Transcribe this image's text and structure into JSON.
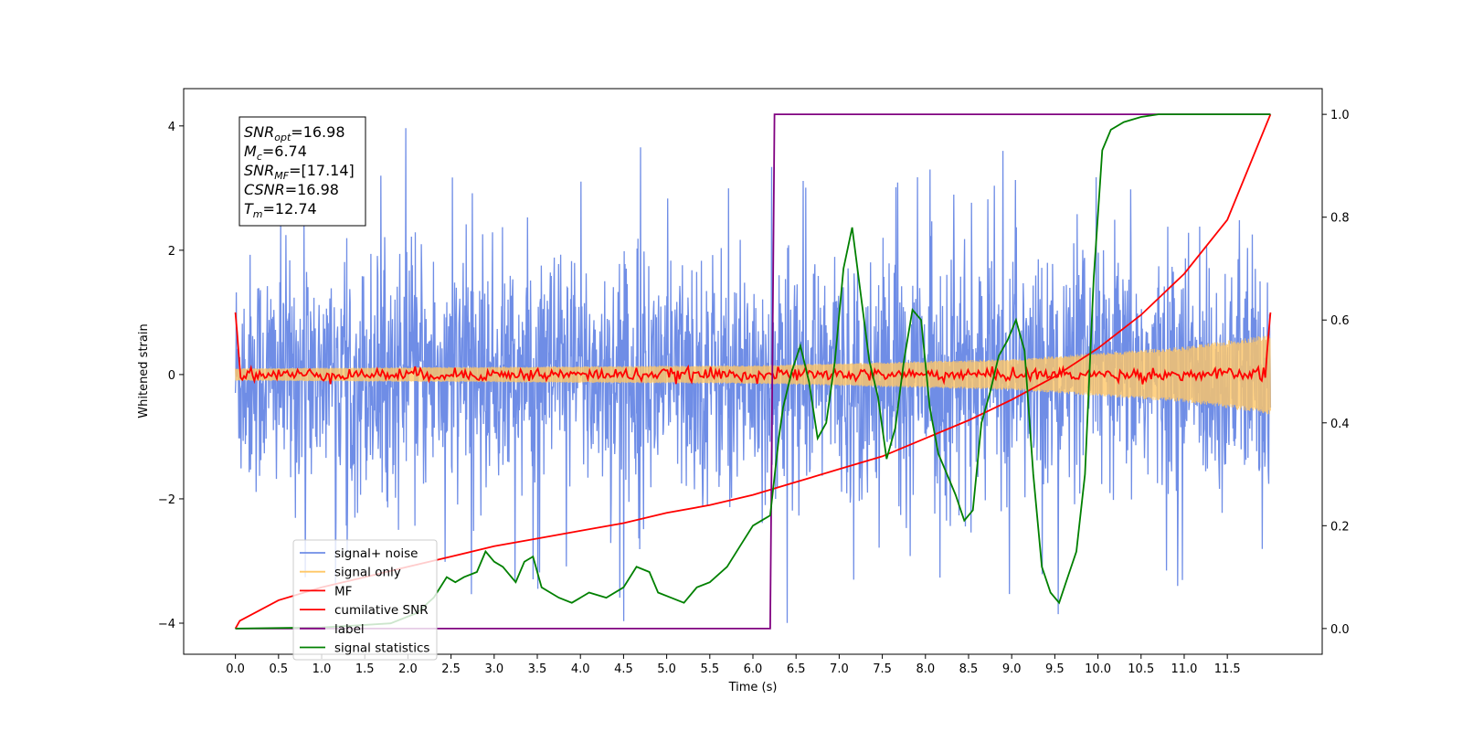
{
  "chart_data": {
    "type": "line",
    "title": "",
    "xlabel": "Time (s)",
    "ylabel_left": "Whitened strain",
    "ylabel_right": "",
    "xlim": [
      -0.6,
      12.6
    ],
    "ylim_left": [
      -4.5,
      4.6
    ],
    "ylim_right": [
      -0.05,
      1.05
    ],
    "x_ticks": [
      0.0,
      0.5,
      1.0,
      1.5,
      2.0,
      2.5,
      3.0,
      3.5,
      4.0,
      4.5,
      5.0,
      5.5,
      6.0,
      6.5,
      7.0,
      7.5,
      8.0,
      8.5,
      9.0,
      9.5,
      10.0,
      10.5,
      11.0,
      11.5
    ],
    "x_tick_labels": [
      "0.0",
      "0.5",
      "1.0",
      "1.5",
      "2.0",
      "2.5",
      "3.0",
      "3.5",
      "4.0",
      "4.5",
      "5.0",
      "5.5",
      "6.0",
      "6.5",
      "7.0",
      "7.5",
      "8.0",
      "8.5",
      "9.0",
      "9.5",
      "10.0",
      "10.5",
      "11.0",
      "11.5"
    ],
    "y_left_ticks": [
      -4,
      -2,
      0,
      2,
      4
    ],
    "y_left_tick_labels": [
      "−4",
      "−2",
      "0",
      "2",
      "4"
    ],
    "y_right_ticks": [
      0.0,
      0.2,
      0.4,
      0.6,
      0.8,
      1.0
    ],
    "y_right_tick_labels": [
      "0.0",
      "0.2",
      "0.4",
      "0.6",
      "0.8",
      "1.0"
    ],
    "grid": false,
    "legend_placement": "lower-left",
    "series": [
      {
        "name": "signal+ noise",
        "axis": "left",
        "color": "#6f8de6",
        "kind": "noise",
        "x_range": [
          0.0,
          12.0
        ],
        "amplitude_std": 0.95,
        "spike_range": [
          -4.1,
          4.1
        ]
      },
      {
        "name": "signal only",
        "axis": "left",
        "color": "#ffc766",
        "kind": "chirp",
        "x_range": [
          0.0,
          12.0
        ],
        "envelope": {
          "x": [
            0.0,
            6.0,
            9.0,
            11.0,
            12.0
          ],
          "amplitude": [
            0.1,
            0.15,
            0.25,
            0.45,
            0.65
          ]
        }
      },
      {
        "name": "MF",
        "axis": "left",
        "color": "#ff0000",
        "kind": "matched-filter",
        "x_range": [
          0.0,
          12.0
        ],
        "edge_value": 1.0,
        "jitter": 0.05
      },
      {
        "name": "cumilative SNR",
        "axis": "right",
        "color": "#ff0000",
        "x": [
          0.0,
          0.05,
          0.5,
          1.0,
          1.5,
          2.0,
          2.5,
          3.0,
          3.5,
          4.0,
          4.5,
          5.0,
          5.5,
          6.0,
          6.5,
          7.0,
          7.5,
          8.0,
          8.5,
          9.0,
          9.5,
          10.0,
          10.5,
          11.0,
          11.5,
          12.0
        ],
        "y": [
          0.0,
          0.015,
          0.055,
          0.08,
          0.1,
          0.12,
          0.14,
          0.16,
          0.175,
          0.19,
          0.205,
          0.225,
          0.24,
          0.26,
          0.285,
          0.31,
          0.335,
          0.37,
          0.405,
          0.445,
          0.49,
          0.545,
          0.61,
          0.69,
          0.795,
          1.0
        ]
      },
      {
        "name": "label",
        "axis": "right",
        "color": "#800080",
        "x": [
          0.0,
          6.2,
          6.25,
          12.0
        ],
        "y": [
          0.0,
          0.0,
          1.0,
          1.0
        ]
      },
      {
        "name": "signal statistics",
        "axis": "right",
        "color": "#008000",
        "x": [
          0.0,
          1.0,
          1.8,
          2.1,
          2.3,
          2.45,
          2.55,
          2.65,
          2.8,
          2.9,
          3.0,
          3.1,
          3.25,
          3.35,
          3.45,
          3.55,
          3.65,
          3.75,
          3.9,
          4.1,
          4.3,
          4.5,
          4.65,
          4.8,
          4.9,
          5.05,
          5.2,
          5.35,
          5.5,
          5.7,
          5.85,
          6.0,
          6.1,
          6.2,
          6.3,
          6.35,
          6.45,
          6.55,
          6.65,
          6.75,
          6.85,
          6.95,
          7.05,
          7.15,
          7.25,
          7.35,
          7.45,
          7.55,
          7.65,
          7.75,
          7.85,
          7.95,
          8.05,
          8.15,
          8.25,
          8.35,
          8.45,
          8.55,
          8.65,
          8.75,
          8.85,
          8.95,
          9.05,
          9.15,
          9.25,
          9.35,
          9.45,
          9.55,
          9.65,
          9.75,
          9.85,
          9.95,
          10.05,
          10.15,
          10.3,
          10.5,
          10.7,
          11.0,
          11.5,
          12.0
        ],
        "y": [
          0.0,
          0.002,
          0.01,
          0.03,
          0.06,
          0.1,
          0.09,
          0.1,
          0.11,
          0.15,
          0.13,
          0.12,
          0.09,
          0.13,
          0.14,
          0.08,
          0.07,
          0.06,
          0.05,
          0.07,
          0.06,
          0.08,
          0.12,
          0.11,
          0.07,
          0.06,
          0.05,
          0.08,
          0.09,
          0.12,
          0.16,
          0.2,
          0.21,
          0.22,
          0.37,
          0.43,
          0.5,
          0.55,
          0.48,
          0.37,
          0.4,
          0.52,
          0.7,
          0.78,
          0.65,
          0.52,
          0.45,
          0.33,
          0.39,
          0.52,
          0.62,
          0.6,
          0.43,
          0.34,
          0.3,
          0.26,
          0.21,
          0.23,
          0.4,
          0.46,
          0.53,
          0.56,
          0.6,
          0.54,
          0.3,
          0.12,
          0.07,
          0.05,
          0.1,
          0.15,
          0.3,
          0.68,
          0.93,
          0.97,
          0.985,
          0.995,
          1.0,
          1.0,
          1.0,
          1.0
        ]
      }
    ],
    "annotation_box": {
      "lines": [
        {
          "var": "SNR",
          "sub": "opt",
          "value": "=16.98"
        },
        {
          "var": "M",
          "sub": "c",
          "value": "=6.74"
        },
        {
          "var": "SNR",
          "sub": "MF",
          "value": "=[17.14]"
        },
        {
          "var": "CSNR",
          "sub": "",
          "value": "=16.98"
        },
        {
          "var": "T",
          "sub": "m",
          "value": "=12.74"
        }
      ]
    }
  }
}
